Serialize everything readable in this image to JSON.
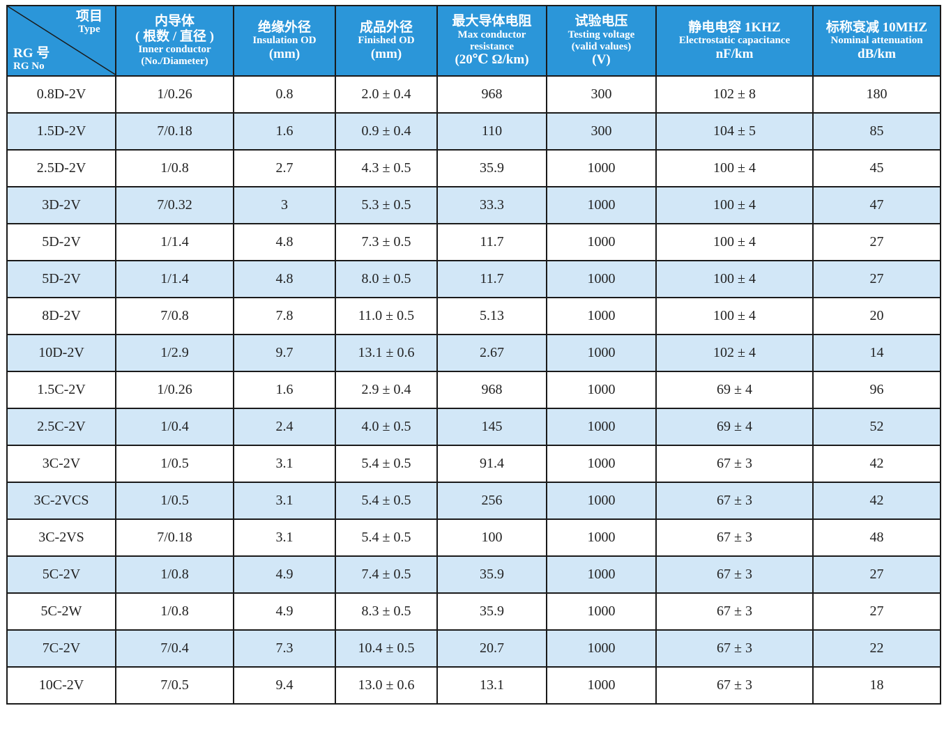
{
  "header": {
    "corner": {
      "top_cn": "项目",
      "top_en": "Type",
      "bottom_cn": "RG 号",
      "bottom_en": "RG No"
    },
    "columns": [
      {
        "cn": "内导体",
        "sub_cn": "( 根数 / 直径 )",
        "en": "Inner conductor",
        "unit": "(No./Diameter)"
      },
      {
        "cn": "绝缘外径",
        "en": "Insulation OD",
        "unit": "(mm)"
      },
      {
        "cn": "成品外径",
        "en": "Finished OD",
        "unit": "(mm)"
      },
      {
        "cn": "最大导体电阻",
        "en": "Max conductor",
        "en2": "resistance",
        "unit": "(20℃ Ω/km)"
      },
      {
        "cn": "试验电压",
        "en": "Testing voltage",
        "en2": "(valid values)",
        "unit": "(V)"
      },
      {
        "cn": "静电电容 1KHZ",
        "en": "Electrostatic capacitance",
        "unit": "nF/km"
      },
      {
        "cn": "标称衰减 10MHZ",
        "en": "Nominal attenuation",
        "unit": "dB/km"
      }
    ]
  },
  "rows": [
    [
      "0.8D-2V",
      "1/0.26",
      "0.8",
      "2.0 ± 0.4",
      "968",
      "300",
      "102 ± 8",
      "180"
    ],
    [
      "1.5D-2V",
      "7/0.18",
      "1.6",
      "0.9 ± 0.4",
      "110",
      "300",
      "104 ± 5",
      "85"
    ],
    [
      "2.5D-2V",
      "1/0.8",
      "2.7",
      "4.3 ± 0.5",
      "35.9",
      "1000",
      "100 ± 4",
      "45"
    ],
    [
      "3D-2V",
      "7/0.32",
      "3",
      "5.3 ± 0.5",
      "33.3",
      "1000",
      "100 ± 4",
      "47"
    ],
    [
      "5D-2V",
      "1/1.4",
      "4.8",
      "7.3 ± 0.5",
      "11.7",
      "1000",
      "100 ± 4",
      "27"
    ],
    [
      "5D-2V",
      "1/1.4",
      "4.8",
      "8.0 ± 0.5",
      "11.7",
      "1000",
      "100 ± 4",
      "27"
    ],
    [
      "8D-2V",
      "7/0.8",
      "7.8",
      "11.0 ± 0.5",
      "5.13",
      "1000",
      "100 ± 4",
      "20"
    ],
    [
      "10D-2V",
      "1/2.9",
      "9.7",
      "13.1 ± 0.6",
      "2.67",
      "1000",
      "102 ± 4",
      "14"
    ],
    [
      "1.5C-2V",
      "1/0.26",
      "1.6",
      "2.9 ± 0.4",
      "968",
      "1000",
      "69 ± 4",
      "96"
    ],
    [
      "2.5C-2V",
      "1/0.4",
      "2.4",
      "4.0 ± 0.5",
      "145",
      "1000",
      "69 ± 4",
      "52"
    ],
    [
      "3C-2V",
      "1/0.5",
      "3.1",
      "5.4 ± 0.5",
      "91.4",
      "1000",
      "67 ± 3",
      "42"
    ],
    [
      "3C-2VCS",
      "1/0.5",
      "3.1",
      "5.4 ± 0.5",
      "256",
      "1000",
      "67 ± 3",
      "42"
    ],
    [
      "3C-2VS",
      "7/0.18",
      "3.1",
      "5.4 ± 0.5",
      "100",
      "1000",
      "67 ± 3",
      "48"
    ],
    [
      "5C-2V",
      "1/0.8",
      "4.9",
      "7.4 ± 0.5",
      "35.9",
      "1000",
      "67 ± 3",
      "27"
    ],
    [
      "5C-2W",
      "1/0.8",
      "4.9",
      "8.3 ± 0.5",
      "35.9",
      "1000",
      "67 ± 3",
      "27"
    ],
    [
      "7C-2V",
      "7/0.4",
      "7.3",
      "10.4 ± 0.5",
      "20.7",
      "1000",
      "67 ± 3",
      "22"
    ],
    [
      "10C-2V",
      "7/0.5",
      "9.4",
      "13.0 ± 0.6",
      "13.1",
      "1000",
      "67 ± 3",
      "18"
    ]
  ],
  "colors": {
    "header_bg": "#2b96d9",
    "header_text": "#ffffff",
    "row_alt_bg": "#d2e7f7",
    "border": "#1a1a1a"
  }
}
